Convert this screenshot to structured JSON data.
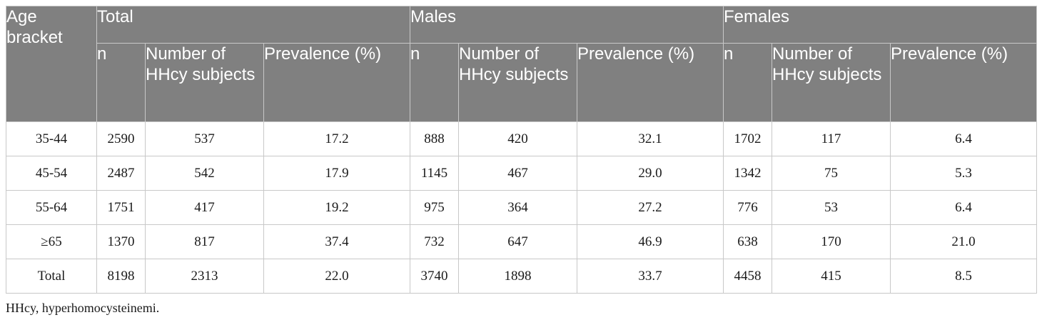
{
  "table": {
    "age_header": "Age bracket",
    "groups": [
      "Total",
      "Males",
      "Females"
    ],
    "subheaders": [
      "n",
      "Number of HHcy subjects",
      "Prevalence (%)"
    ],
    "rows": [
      [
        "35-44",
        "2590",
        "537",
        "17.2",
        "888",
        "420",
        "32.1",
        "1702",
        "117",
        "6.4"
      ],
      [
        "45-54",
        "2487",
        "542",
        "17.9",
        "1145",
        "467",
        "29.0",
        "1342",
        "75",
        "5.3"
      ],
      [
        "55-64",
        "1751",
        "417",
        "19.2",
        "975",
        "364",
        "27.2",
        "776",
        "53",
        "6.4"
      ],
      [
        "≥65",
        "1370",
        "817",
        "37.4",
        "732",
        "647",
        "46.9",
        "638",
        "170",
        "21.0"
      ],
      [
        "Total",
        "8198",
        "2313",
        "22.0",
        "3740",
        "1898",
        "33.7",
        "4458",
        "415",
        "8.5"
      ]
    ]
  },
  "footnote": "HHcy, hyperhomocysteinemi.",
  "colors": {
    "header_bg": "#808080",
    "header_text": "#ffffff",
    "grid_line": "#c8c8c8"
  }
}
